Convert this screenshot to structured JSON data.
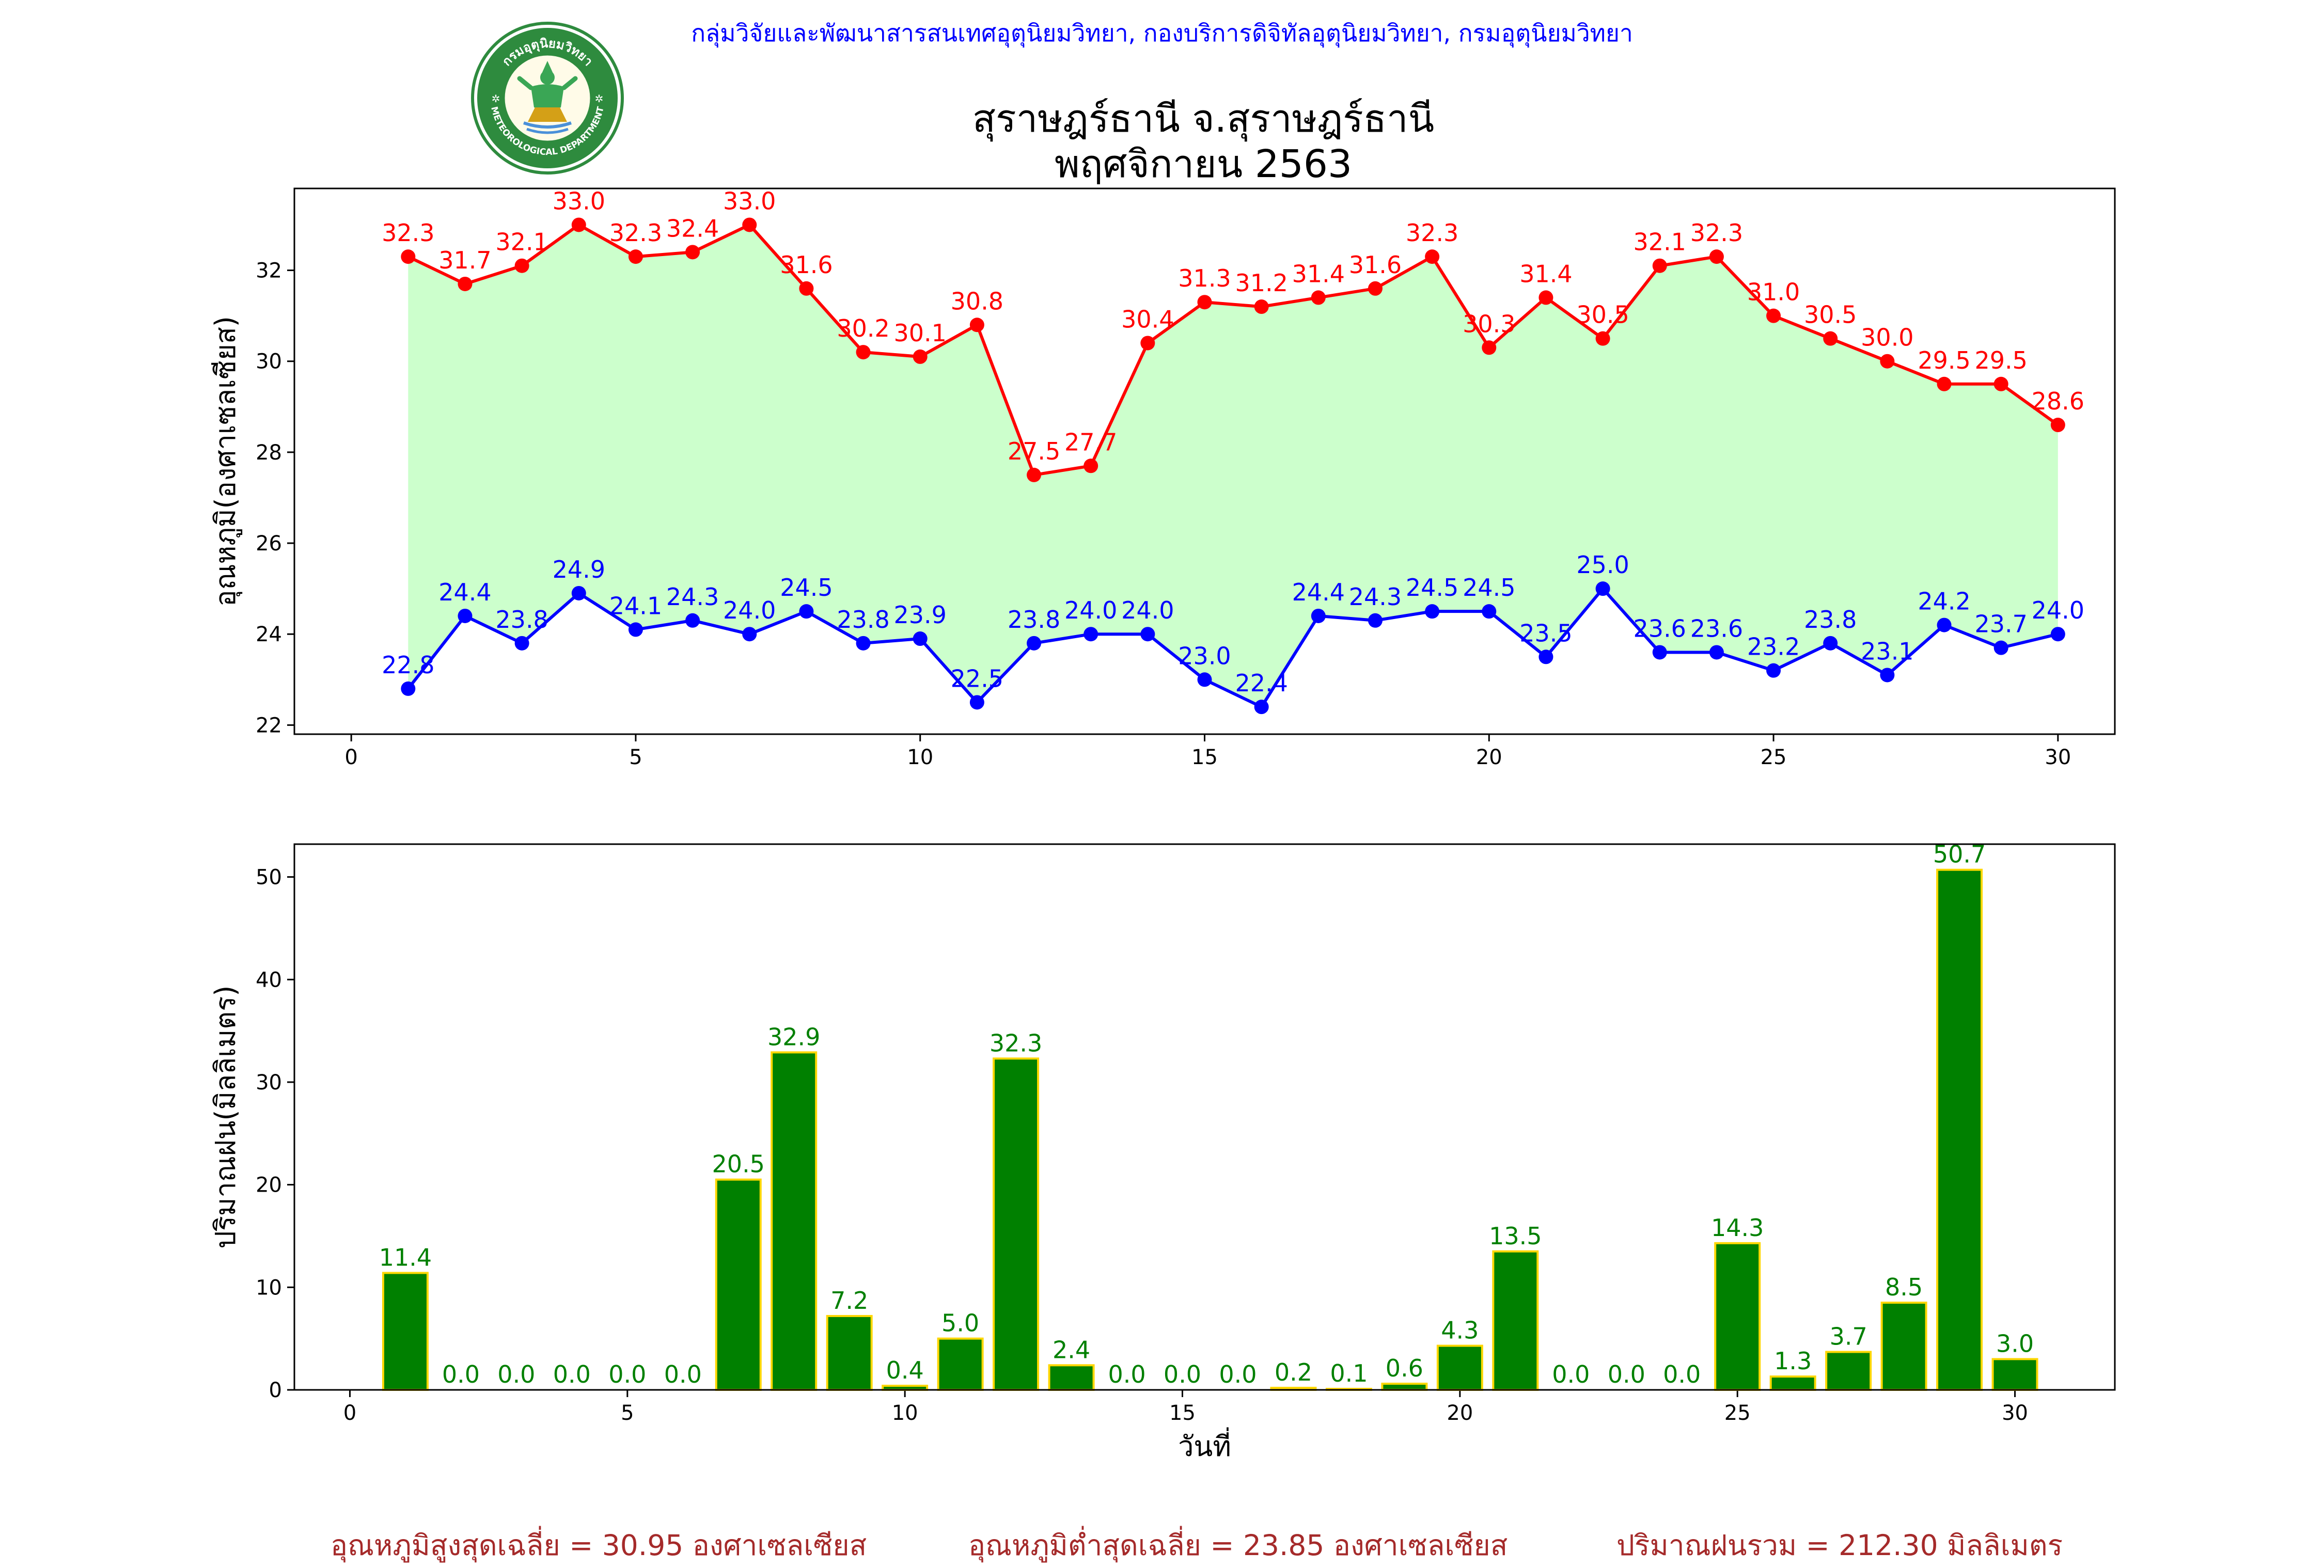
{
  "header": {
    "credit": "กลุ่มวิจัยและพัฒนาสารสนเทศอุตุนิยมวิทยา, กองบริการดิจิทัลอุตุนิยมวิทยา, กรมอุตุนิยมวิทยา",
    "title_line1": "สุราษฎร์ธานี จ.สุราษฎร์ธานี",
    "title_line2": "พฤศจิกายน 2563",
    "logo_top_text": "กรมอุตุนิยมวิทยา",
    "logo_bottom_text": "METEOROLOGICAL DEPARTMENT"
  },
  "footer": {
    "avg_max": "อุณหภูมิสูงสุดเฉลี่ย = 30.95 องศาเซลเซียส",
    "avg_min": "อุณหภูมิต่ำสุดเฉลี่ย = 23.85 องศาเซลเซียส",
    "rain_total": "ปริมาณฝนรวม = 212.30 มิลลิเมตร"
  },
  "colors": {
    "max_temp": "#ff0000",
    "min_temp": "#0000ff",
    "fill": "#ccffcc",
    "rain_bar": "#008000",
    "rain_edge": "#ffd700",
    "rain_label": "#008000",
    "footer_text": "#a52a2a",
    "credit_text": "#0000ff"
  },
  "chart_data": [
    {
      "type": "line",
      "ylabel": "อุณหภูมิ(องศาเซลเซียส)",
      "xlabel": "",
      "xlim": [
        -1,
        31
      ],
      "ylim": [
        21.8,
        33.8
      ],
      "xticks": [
        0,
        5,
        10,
        15,
        20,
        25,
        30
      ],
      "yticks": [
        22,
        24,
        26,
        28,
        30,
        32
      ],
      "x": [
        1,
        2,
        3,
        4,
        5,
        6,
        7,
        8,
        9,
        10,
        11,
        12,
        13,
        14,
        15,
        16,
        17,
        18,
        19,
        20,
        21,
        22,
        23,
        24,
        25,
        26,
        27,
        28,
        29,
        30
      ],
      "fill_between": true,
      "series": [
        {
          "key": "max",
          "values": [
            32.3,
            31.7,
            32.1,
            33.0,
            32.3,
            32.4,
            33.0,
            31.6,
            30.2,
            30.1,
            30.8,
            27.5,
            27.7,
            30.4,
            31.3,
            31.2,
            31.4,
            31.6,
            32.3,
            30.3,
            31.4,
            30.5,
            32.1,
            32.3,
            31.0,
            30.5,
            30.0,
            29.5,
            29.5,
            28.6
          ]
        },
        {
          "key": "min",
          "values": [
            22.8,
            24.4,
            23.8,
            24.9,
            24.1,
            24.3,
            24.0,
            24.5,
            23.8,
            23.9,
            22.5,
            23.8,
            24.0,
            24.0,
            23.0,
            22.4,
            24.4,
            24.3,
            24.5,
            24.5,
            23.5,
            25.0,
            23.6,
            23.6,
            23.2,
            23.8,
            23.1,
            24.2,
            23.7,
            24.0
          ]
        }
      ]
    },
    {
      "type": "bar",
      "ylabel": "ปริมาณฝน(มิลลิเมตร)",
      "xlabel": "วันที่",
      "xlim": [
        -1,
        31.8
      ],
      "ylim": [
        0,
        53.2
      ],
      "xticks": [
        0,
        5,
        10,
        15,
        20,
        25,
        30
      ],
      "yticks": [
        0,
        10,
        20,
        30,
        40,
        50
      ],
      "categories": [
        1,
        2,
        3,
        4,
        5,
        6,
        7,
        8,
        9,
        10,
        11,
        12,
        13,
        14,
        15,
        16,
        17,
        18,
        19,
        20,
        21,
        22,
        23,
        24,
        25,
        26,
        27,
        28,
        29,
        30
      ],
      "values": [
        11.4,
        0.0,
        0.0,
        0.0,
        0.0,
        0.0,
        20.5,
        32.9,
        7.2,
        0.4,
        5.0,
        32.3,
        2.4,
        0.0,
        0.0,
        0.0,
        0.2,
        0.1,
        0.6,
        4.3,
        13.5,
        0.0,
        0.0,
        0.0,
        14.3,
        1.3,
        3.7,
        8.5,
        50.7,
        3.0
      ]
    }
  ]
}
